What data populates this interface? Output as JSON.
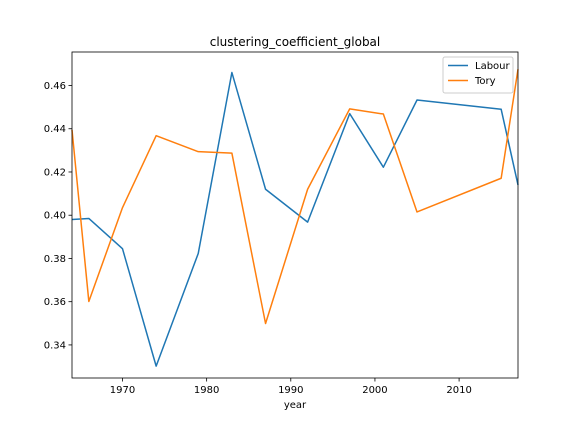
{
  "chart_data": {
    "type": "line",
    "title": "clustering_coefficient_global",
    "xlabel": "year",
    "ylabel": "",
    "xlim": [
      1964,
      2017
    ],
    "ylim": [
      0.3247,
      0.4755
    ],
    "xticks": [
      1970,
      1980,
      1990,
      2000,
      2010
    ],
    "yticks": [
      0.34,
      0.36,
      0.38,
      0.4,
      0.42,
      0.44,
      0.46
    ],
    "ytick_labels": [
      "0.34",
      "0.36",
      "0.38",
      "0.40",
      "0.42",
      "0.44",
      "0.46"
    ],
    "grid": false,
    "legend_position": "upper right",
    "series": [
      {
        "name": "Labour",
        "color": "#1f77b4",
        "x": [
          1964,
          1966,
          1970,
          1974,
          1979,
          1983,
          1987,
          1992,
          1997,
          2001,
          2005,
          2015,
          2017
        ],
        "y": [
          0.398,
          0.3985,
          0.3845,
          0.3302,
          0.3823,
          0.466,
          0.412,
          0.3968,
          0.447,
          0.4222,
          0.4533,
          0.449,
          0.414
        ]
      },
      {
        "name": "Tory",
        "color": "#ff7f0e",
        "x": [
          1964,
          1966,
          1970,
          1974,
          1979,
          1983,
          1987,
          1992,
          1997,
          2001,
          2005,
          2015,
          2017
        ],
        "y": [
          0.4395,
          0.3601,
          0.4035,
          0.4368,
          0.4294,
          0.4287,
          0.3499,
          0.412,
          0.4492,
          0.4468,
          0.4015,
          0.4171,
          0.4675
        ]
      }
    ]
  }
}
